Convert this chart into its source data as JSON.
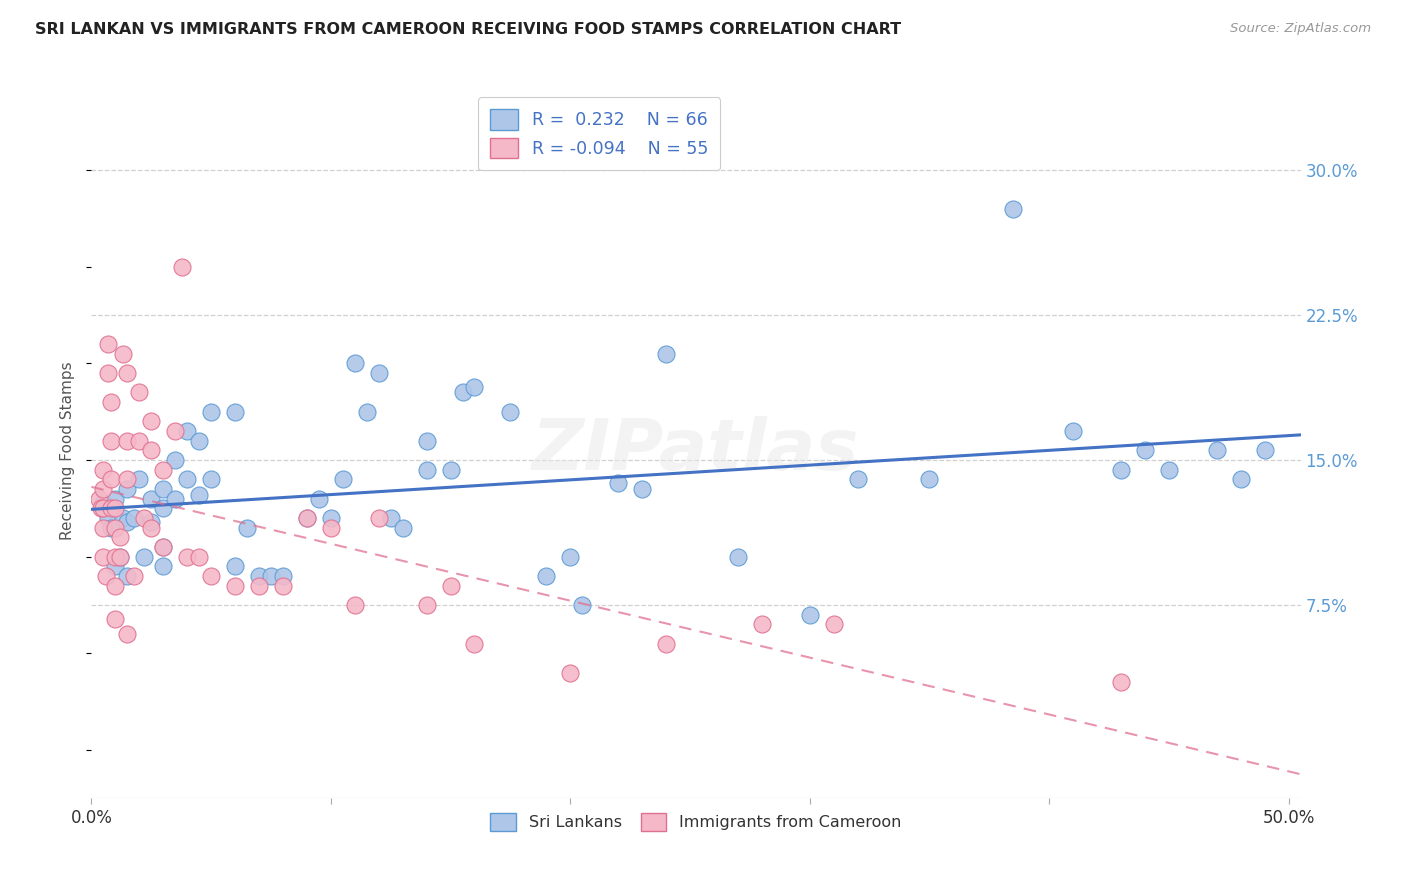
{
  "title": "SRI LANKAN VS IMMIGRANTS FROM CAMEROON RECEIVING FOOD STAMPS CORRELATION CHART",
  "source": "Source: ZipAtlas.com",
  "ylabel": "Receiving Food Stamps",
  "ytick_vals": [
    0.075,
    0.15,
    0.225,
    0.3
  ],
  "ytick_labels": [
    "7.5%",
    "15.0%",
    "22.5%",
    "30.0%"
  ],
  "xtick_vals": [
    0.0,
    0.1,
    0.2,
    0.3,
    0.4,
    0.5
  ],
  "xtick_labels": [
    "0.0%",
    "",
    "",
    "",
    "",
    "50.0%"
  ],
  "xlim": [
    0.0,
    0.505
  ],
  "ylim": [
    -0.025,
    0.335
  ],
  "legend_label_blue": "Sri Lankans",
  "legend_label_pink": "Immigrants from Cameroon",
  "blue_fill": "#aec6e8",
  "blue_edge": "#5b9bd5",
  "pink_fill": "#f4b8c8",
  "pink_edge": "#e07090",
  "blue_line_color": "#4472c4",
  "pink_line_color": "#e07090",
  "grid_color": "#d0d0d0",
  "background_color": "#ffffff",
  "text_color": "#555555",
  "right_axis_color": "#5b9bd5",
  "scatter_blue_x": [
    0.005,
    0.007,
    0.008,
    0.01,
    0.01,
    0.012,
    0.013,
    0.015,
    0.015,
    0.015,
    0.018,
    0.02,
    0.022,
    0.025,
    0.025,
    0.03,
    0.03,
    0.03,
    0.03,
    0.035,
    0.035,
    0.04,
    0.04,
    0.045,
    0.045,
    0.05,
    0.05,
    0.06,
    0.06,
    0.065,
    0.07,
    0.075,
    0.08,
    0.09,
    0.095,
    0.1,
    0.105,
    0.11,
    0.115,
    0.12,
    0.125,
    0.13,
    0.14,
    0.14,
    0.15,
    0.155,
    0.16,
    0.175,
    0.19,
    0.2,
    0.205,
    0.22,
    0.23,
    0.24,
    0.27,
    0.3,
    0.32,
    0.35,
    0.385,
    0.41,
    0.43,
    0.44,
    0.45,
    0.47,
    0.48,
    0.49
  ],
  "scatter_blue_y": [
    0.128,
    0.12,
    0.115,
    0.13,
    0.095,
    0.1,
    0.12,
    0.135,
    0.118,
    0.09,
    0.12,
    0.14,
    0.1,
    0.13,
    0.118,
    0.135,
    0.125,
    0.105,
    0.095,
    0.15,
    0.13,
    0.165,
    0.14,
    0.16,
    0.132,
    0.175,
    0.14,
    0.175,
    0.095,
    0.115,
    0.09,
    0.09,
    0.09,
    0.12,
    0.13,
    0.12,
    0.14,
    0.2,
    0.175,
    0.195,
    0.12,
    0.115,
    0.16,
    0.145,
    0.145,
    0.185,
    0.188,
    0.175,
    0.09,
    0.1,
    0.075,
    0.138,
    0.135,
    0.205,
    0.1,
    0.07,
    0.14,
    0.14,
    0.28,
    0.165,
    0.145,
    0.155,
    0.145,
    0.155,
    0.14,
    0.155
  ],
  "scatter_pink_x": [
    0.003,
    0.004,
    0.005,
    0.005,
    0.005,
    0.005,
    0.005,
    0.006,
    0.007,
    0.007,
    0.008,
    0.008,
    0.008,
    0.008,
    0.01,
    0.01,
    0.01,
    0.01,
    0.01,
    0.012,
    0.012,
    0.013,
    0.015,
    0.015,
    0.015,
    0.015,
    0.018,
    0.02,
    0.02,
    0.022,
    0.025,
    0.025,
    0.025,
    0.03,
    0.03,
    0.035,
    0.038,
    0.04,
    0.045,
    0.05,
    0.06,
    0.07,
    0.08,
    0.09,
    0.1,
    0.11,
    0.12,
    0.14,
    0.15,
    0.16,
    0.2,
    0.24,
    0.28,
    0.31,
    0.43
  ],
  "scatter_pink_y": [
    0.13,
    0.125,
    0.145,
    0.135,
    0.125,
    0.115,
    0.1,
    0.09,
    0.21,
    0.195,
    0.18,
    0.16,
    0.14,
    0.125,
    0.125,
    0.115,
    0.1,
    0.085,
    0.068,
    0.11,
    0.1,
    0.205,
    0.195,
    0.16,
    0.14,
    0.06,
    0.09,
    0.185,
    0.16,
    0.12,
    0.17,
    0.155,
    0.115,
    0.145,
    0.105,
    0.165,
    0.25,
    0.1,
    0.1,
    0.09,
    0.085,
    0.085,
    0.085,
    0.12,
    0.115,
    0.075,
    0.12,
    0.075,
    0.085,
    0.055,
    0.04,
    0.055,
    0.065,
    0.065,
    0.035
  ]
}
